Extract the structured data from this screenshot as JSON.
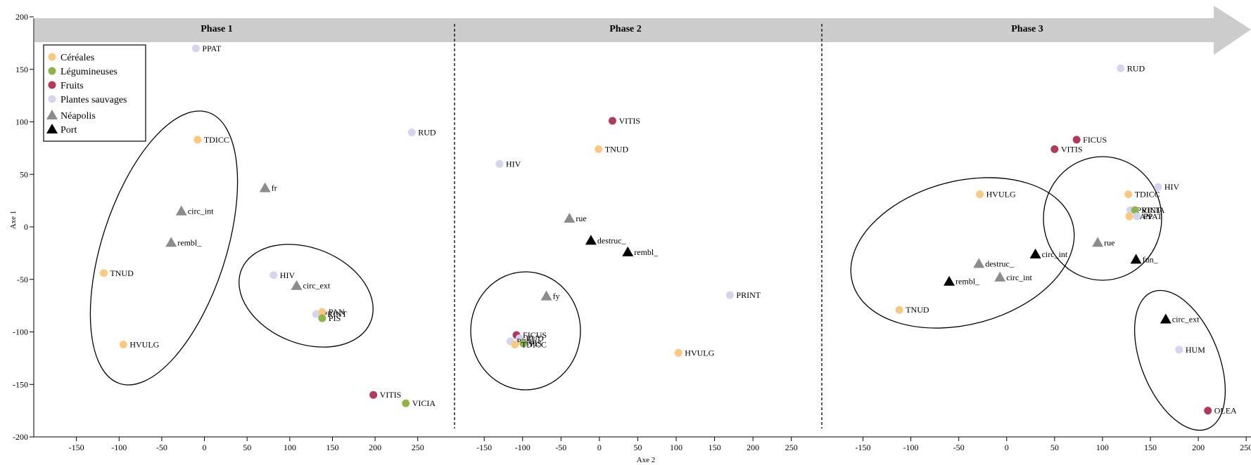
{
  "chart_data": {
    "type": "scatter",
    "xlabel": "Axe 2",
    "ylabel": "Axe 1",
    "ylim": [
      -200,
      200
    ],
    "yticks": [
      "200",
      "150",
      "100",
      "50",
      "0",
      "-50",
      "-100",
      "-150",
      "-200"
    ],
    "legend": {
      "placement": "top-left",
      "items": [
        {
          "label": "Céréales",
          "shape": "circle",
          "color": "#f9c981"
        },
        {
          "label": "Légumineuses",
          "shape": "circle",
          "color": "#8fb54a"
        },
        {
          "label": "Fruits",
          "shape": "circle",
          "color": "#b03a5b"
        },
        {
          "label": "Plantes sauvages",
          "shape": "circle",
          "color": "#d4d4ec"
        },
        {
          "label": "Néapolis",
          "shape": "triangle",
          "color": "#8c8c8c"
        },
        {
          "label": "Port",
          "shape": "triangle",
          "color": "#000000"
        }
      ]
    },
    "phases": [
      {
        "title": "Phase 1",
        "xlim": [
          -200,
          270
        ],
        "xticks": [
          "-150",
          "-100",
          "-50",
          "0",
          "50",
          "100",
          "150",
          "200",
          "250"
        ],
        "points": [
          {
            "label": "PPAT",
            "category": "Plantes sauvages",
            "x": -10,
            "y": 170
          },
          {
            "label": "TDICC",
            "category": "Céréales",
            "x": -8,
            "y": 83
          },
          {
            "label": "RUD",
            "category": "Plantes sauvages",
            "x": 243,
            "y": 90
          },
          {
            "label": "fr",
            "category": "Néapolis",
            "x": 71,
            "y": 37
          },
          {
            "label": "circ_int",
            "category": "Néapolis",
            "x": -27,
            "y": 15
          },
          {
            "label": "rembl_",
            "category": "Néapolis",
            "x": -39,
            "y": -15
          },
          {
            "label": "TNUD",
            "category": "Céréales",
            "x": -118,
            "y": -44
          },
          {
            "label": "HIV",
            "category": "Plantes sauvages",
            "x": 81,
            "y": -46
          },
          {
            "label": "circ_ext",
            "category": "Néapolis",
            "x": 108,
            "y": -56
          },
          {
            "label": "PRINT",
            "category": "Plantes sauvages",
            "x": 131,
            "y": -83
          },
          {
            "label": "PAN",
            "category": "Céréales",
            "x": 138,
            "y": -81
          },
          {
            "label": "PIS",
            "category": "Légumineuses",
            "x": 138,
            "y": -87
          },
          {
            "label": "HVULG",
            "category": "Céréales",
            "x": -95,
            "y": -112
          },
          {
            "label": "VITIS",
            "category": "Fruits",
            "x": 198,
            "y": -160
          },
          {
            "label": "VICIA",
            "category": "Légumineuses",
            "x": 236,
            "y": -168
          }
        ]
      },
      {
        "title": "Phase 2",
        "xlim": [
          -185,
          275
        ],
        "xticks": [
          "-150",
          "-100",
          "-50",
          "0",
          "50",
          "100",
          "150",
          "200",
          "250"
        ],
        "points": [
          {
            "label": "VITIS",
            "category": "Fruits",
            "x": 17,
            "y": 101
          },
          {
            "label": "TNUD",
            "category": "Céréales",
            "x": -1,
            "y": 74
          },
          {
            "label": "HIV",
            "category": "Plantes sauvages",
            "x": -130,
            "y": 60
          },
          {
            "label": "rue",
            "category": "Néapolis",
            "x": -39,
            "y": 8
          },
          {
            "label": "destruc_",
            "category": "Port",
            "x": -11,
            "y": -13
          },
          {
            "label": "rembl_",
            "category": "Port",
            "x": 37,
            "y": -24
          },
          {
            "label": "PRINT",
            "category": "Plantes sauvages",
            "x": 170,
            "y": -65
          },
          {
            "label": "fy",
            "category": "Néapolis",
            "x": -69,
            "y": -66
          },
          {
            "label": "FICUS",
            "category": "Fruits",
            "x": -108,
            "y": -103
          },
          {
            "label": "RUD",
            "category": "Plantes sauvages",
            "x": -104,
            "y": -106
          },
          {
            "label": "PPAT",
            "category": "Plantes sauvages",
            "x": -116,
            "y": -109
          },
          {
            "label": "PIS",
            "category": "Légumineuses",
            "x": -99,
            "y": -111
          },
          {
            "label": "TDICC",
            "category": "Céréales",
            "x": -110,
            "y": -112
          },
          {
            "label": "HVULG",
            "category": "Céréales",
            "x": 103,
            "y": -120
          }
        ]
      },
      {
        "title": "Phase 3",
        "xlim": [
          -190,
          255
        ],
        "xticks": [
          "-150",
          "-100",
          "-50",
          "0",
          "50",
          "100",
          "150",
          "200",
          "250"
        ],
        "points": [
          {
            "label": "RUD",
            "category": "Plantes sauvages",
            "x": 119,
            "y": 151
          },
          {
            "label": "FICUS",
            "category": "Fruits",
            "x": 73,
            "y": 83
          },
          {
            "label": "VITIS",
            "category": "Fruits",
            "x": 50,
            "y": 74
          },
          {
            "label": "HIV",
            "category": "Plantes sauvages",
            "x": 158,
            "y": 38
          },
          {
            "label": "TDICC",
            "category": "Céréales",
            "x": 127,
            "y": 31
          },
          {
            "label": "HVULG",
            "category": "Céréales",
            "x": -28,
            "y": 31
          },
          {
            "label": "PRINT",
            "category": "Plantes sauvages",
            "x": 129,
            "y": 16
          },
          {
            "label": "VICIA",
            "category": "Légumineuses",
            "x": 134,
            "y": 16
          },
          {
            "label": "PAN",
            "category": "Céréales",
            "x": 128,
            "y": 10
          },
          {
            "label": "PPAT",
            "category": "Plantes sauvages",
            "x": 136,
            "y": 10
          },
          {
            "label": "rue",
            "category": "Néapolis",
            "x": 95,
            "y": -15
          },
          {
            "label": "circ_int",
            "category": "Port",
            "x": 30,
            "y": -26
          },
          {
            "label": "fun_",
            "category": "Port",
            "x": 135,
            "y": -31
          },
          {
            "label": "destruc_",
            "category": "Néapolis",
            "x": -29,
            "y": -35
          },
          {
            "label": "circ_int",
            "category": "Néapolis",
            "x": -7,
            "y": -48
          },
          {
            "label": "rembl_",
            "category": "Port",
            "x": -60,
            "y": -52
          },
          {
            "label": "TNUD",
            "category": "Céréales",
            "x": -112,
            "y": -79
          },
          {
            "label": "circ_ext",
            "category": "Port",
            "x": 166,
            "y": -88
          },
          {
            "label": "HUM",
            "category": "Plantes sauvages",
            "x": 180,
            "y": -117
          },
          {
            "label": "OLEA",
            "category": "Fruits",
            "x": 210,
            "y": -175
          }
        ]
      }
    ]
  }
}
